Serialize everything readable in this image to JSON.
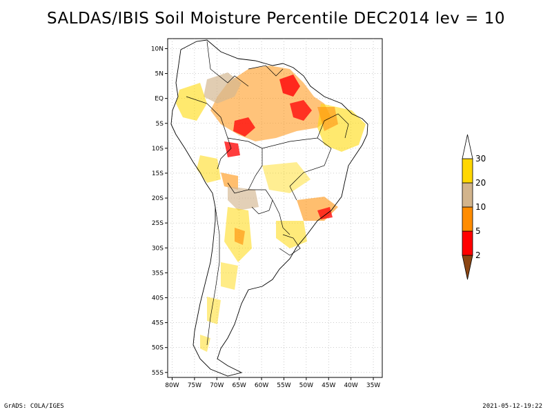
{
  "title": "SALDAS/IBIS Soil Moisture Percentile DEC2014 lev = 10",
  "latitude_labels": [
    "10N",
    "5N",
    "EQ",
    "5S",
    "10S",
    "15S",
    "20S",
    "25S",
    "30S",
    "35S",
    "40S",
    "45S",
    "50S",
    "55S"
  ],
  "longitude_labels": [
    "80W",
    "75W",
    "70W",
    "65W",
    "60W",
    "55W",
    "50W",
    "45W",
    "40W",
    "35W"
  ],
  "map_extent": {
    "lon_min": -81,
    "lon_max": -33,
    "lat_min": -56,
    "lat_max": 12
  },
  "colorbar": {
    "labels": [
      "2",
      "5",
      "10",
      "20",
      "30"
    ],
    "colors": [
      "#8b4513",
      "#ff0000",
      "#ff8c00",
      "#d2b48c",
      "#ffd700",
      "#ffffff"
    ]
  },
  "footer": {
    "left": "GrADS: COLA/IGES",
    "right": "2021-05-12-19:22"
  }
}
